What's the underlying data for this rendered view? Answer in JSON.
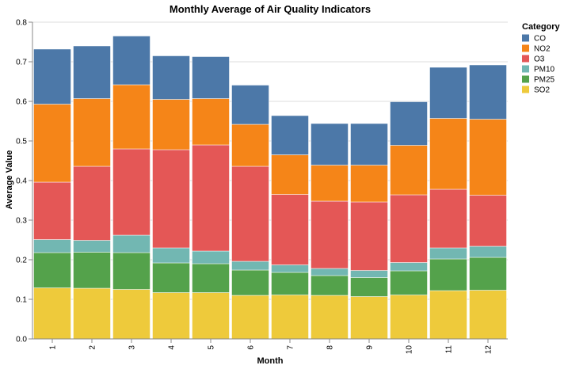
{
  "chart_data": {
    "type": "bar",
    "stacked": true,
    "title": "Monthly Average of Air Quality Indicators",
    "xlabel": "Month",
    "ylabel": "Average Value",
    "ylim": [
      0,
      0.8
    ],
    "yticks": [
      "0.0",
      "0.1",
      "0.2",
      "0.3",
      "0.4",
      "0.5",
      "0.6",
      "0.7",
      "0.8"
    ],
    "categories": [
      "1",
      "2",
      "3",
      "4",
      "5",
      "6",
      "7",
      "8",
      "9",
      "10",
      "11",
      "12"
    ],
    "grid": true,
    "legend": {
      "title": "Category",
      "placement": "right"
    },
    "series": [
      {
        "name": "SO2",
        "color": "#eeca3b",
        "values": [
          0.129,
          0.128,
          0.125,
          0.117,
          0.117,
          0.11,
          0.111,
          0.11,
          0.107,
          0.111,
          0.122,
          0.123
        ]
      },
      {
        "name": "PM25",
        "color": "#54a24b",
        "values": [
          0.089,
          0.091,
          0.093,
          0.075,
          0.073,
          0.064,
          0.057,
          0.05,
          0.048,
          0.061,
          0.08,
          0.083
        ]
      },
      {
        "name": "PM10",
        "color": "#72b7b2",
        "values": [
          0.033,
          0.03,
          0.044,
          0.038,
          0.032,
          0.022,
          0.019,
          0.018,
          0.018,
          0.021,
          0.028,
          0.028
        ]
      },
      {
        "name": "O3",
        "color": "#e45756",
        "values": [
          0.145,
          0.187,
          0.218,
          0.248,
          0.268,
          0.24,
          0.178,
          0.17,
          0.173,
          0.171,
          0.148,
          0.129
        ]
      },
      {
        "name": "NO2",
        "color": "#f58518",
        "values": [
          0.197,
          0.171,
          0.162,
          0.127,
          0.117,
          0.106,
          0.1,
          0.091,
          0.093,
          0.125,
          0.179,
          0.192
        ]
      },
      {
        "name": "CO",
        "color": "#4c78a8",
        "values": [
          0.139,
          0.133,
          0.123,
          0.11,
          0.106,
          0.099,
          0.099,
          0.105,
          0.105,
          0.11,
          0.129,
          0.137
        ]
      }
    ],
    "legend_order": [
      "CO",
      "NO2",
      "O3",
      "PM10",
      "PM25",
      "SO2"
    ]
  }
}
